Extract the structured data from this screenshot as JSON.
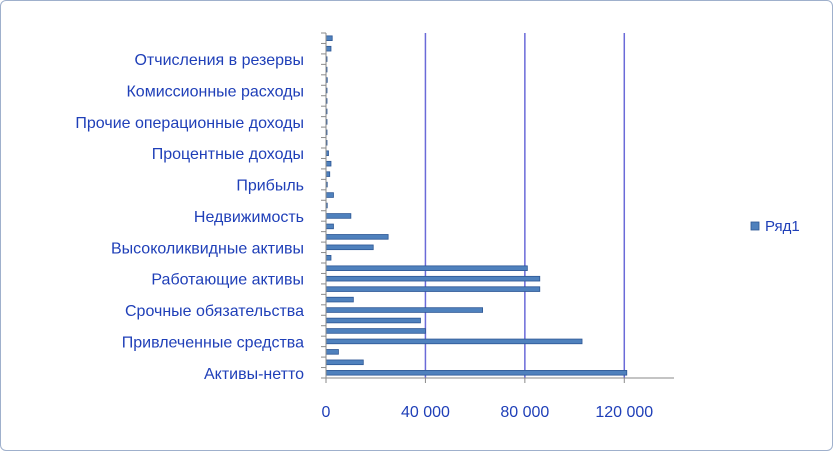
{
  "chart_data": {
    "type": "bar",
    "orientation": "horizontal",
    "categories": [
      "Активы-нетто",
      "",
      "",
      "Привлеченные средства",
      "",
      "",
      "Срочные обязательства",
      "",
      "",
      "Работающие активы",
      "",
      "",
      "Высоколиквидные активы",
      "",
      "",
      "Недвижимость",
      "",
      "",
      "Прибыль",
      "",
      "",
      "Процентные доходы",
      "",
      "",
      "Прочие операционные доходы",
      "",
      "",
      "Комиссионные расходы",
      "",
      "",
      "Отчисления в резервы",
      "",
      ""
    ],
    "series": [
      {
        "name": "Ряд1",
        "values": [
          121000,
          15000,
          5000,
          103000,
          40000,
          38000,
          63000,
          11000,
          86000,
          86000,
          81000,
          2000,
          19000,
          25000,
          3000,
          10000,
          500,
          3000,
          500,
          1500,
          2000,
          1000,
          300,
          200,
          300,
          400,
          300,
          300,
          500,
          300,
          200,
          2000,
          2500
        ]
      }
    ],
    "xlim": [
      0,
      140000
    ],
    "xticks": [
      0,
      40000,
      80000,
      120000
    ],
    "xtick_labels": [
      "0",
      "40 000",
      "80 000",
      "120 000"
    ],
    "grid": true,
    "legend": "right",
    "colors": {
      "bar": "#4f81bd",
      "bar_edge": "#2c5694",
      "grid": "#6a6ad8",
      "text": "#1f3fb8"
    }
  }
}
